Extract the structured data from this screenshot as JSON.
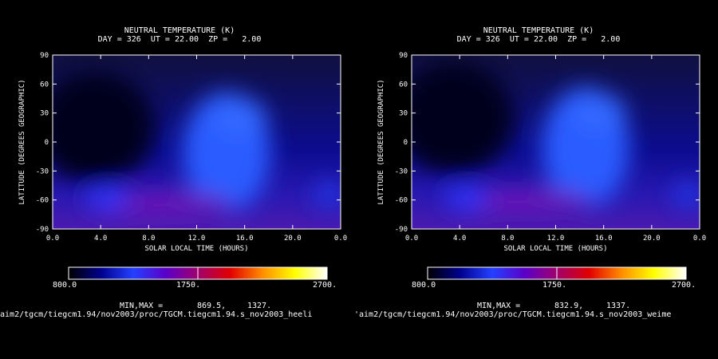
{
  "colors": {
    "background": "#000000",
    "colorscale": [
      "#000000",
      "#00008c",
      "#2440ff",
      "#5a00c8",
      "#a0006e",
      "#e10000",
      "#ff8c00",
      "#ffff00",
      "#ffffff"
    ]
  },
  "panels": [
    {
      "title_line1": "NEUTRAL TEMPERATURE (K)",
      "title_line2": "DAY = 326  UT = 22.00  ZP =   2.00",
      "ylabel": "LATITUDE (DEGREES GEOGRAPHIC)",
      "xlabel": "SOLAR LOCAL TIME (HOURS)",
      "xtick_labels": [
        "0.0",
        "4.0",
        "8.0",
        "12.0",
        "16.0",
        "20.0",
        "0.0"
      ],
      "ytick_labels": [
        "90",
        "60",
        "30",
        "0",
        "-30",
        "-60",
        "-90"
      ],
      "colorbar_min_label": "800.0",
      "colorbar_mid_label": "1750.",
      "colorbar_max_label": "2700.",
      "minmax_label": "MIN,MAX =",
      "min_value": "869.5,",
      "max_value": "1327.",
      "source_path": "/aim2/tgcm/tiegcm1.94/nov2003/proc/TGCM.tiegcm1.94.s_nov2003_heeli"
    },
    {
      "title_line1": "NEUTRAL TEMPERATURE (K)",
      "title_line2": "DAY = 326  UT = 22.00  ZP =   2.00",
      "ylabel": "LATITUDE (DEGREES GEOGRAPHIC)",
      "xlabel": "SOLAR LOCAL TIME (HOURS)",
      "xtick_labels": [
        "0.0",
        "4.0",
        "8.0",
        "12.0",
        "16.0",
        "20.0",
        "0.0"
      ],
      "ytick_labels": [
        "90",
        "60",
        "30",
        "0",
        "-30",
        "-60",
        "-90"
      ],
      "colorbar_min_label": "800.0",
      "colorbar_mid_label": "1750.",
      "colorbar_max_label": "2700.",
      "minmax_label": "MIN,MAX =",
      "min_value": "832.9,",
      "max_value": "1337.",
      "source_path": "'aim2/tgcm/tiegcm1.94/nov2003/proc/TGCM.tiegcm1.94.s_nov2003_weime"
    }
  ],
  "chart_data": [
    {
      "type": "heatmap",
      "title": "NEUTRAL TEMPERATURE (K)",
      "subtitle": "DAY = 326  UT = 22.00  ZP =   2.00",
      "xlabel": "SOLAR LOCAL TIME (HOURS)",
      "ylabel": "LATITUDE (DEGREES GEOGRAPHIC)",
      "xlim": [
        0,
        24
      ],
      "ylim": [
        -90,
        90
      ],
      "x_ticks": [
        0,
        4,
        8,
        12,
        16,
        20,
        24
      ],
      "y_ticks": [
        90,
        60,
        30,
        0,
        -30,
        -60,
        -90
      ],
      "colorbar_range": [
        800,
        2700
      ],
      "min": 869.5,
      "max": 1327,
      "field_features": [
        {
          "feature": "cold minimum",
          "slt": 3.5,
          "lat": 15,
          "value": 880
        },
        {
          "feature": "warm dayside maximum",
          "slt": 14.5,
          "lat": -10,
          "value": 1180
        },
        {
          "feature": "southern auroral heating",
          "slt": 9,
          "lat": -65,
          "value": 1327
        }
      ]
    },
    {
      "type": "heatmap",
      "title": "NEUTRAL TEMPERATURE (K)",
      "subtitle": "DAY = 326  UT = 22.00  ZP =   2.00",
      "xlabel": "SOLAR LOCAL TIME (HOURS)",
      "ylabel": "LATITUDE (DEGREES GEOGRAPHIC)",
      "xlim": [
        0,
        24
      ],
      "ylim": [
        -90,
        90
      ],
      "x_ticks": [
        0,
        4,
        8,
        12,
        16,
        20,
        24
      ],
      "y_ticks": [
        90,
        60,
        30,
        0,
        -30,
        -60,
        -90
      ],
      "colorbar_range": [
        800,
        2700
      ],
      "min": 832.9,
      "max": 1337,
      "field_features": [
        {
          "feature": "cold minimum",
          "slt": 3.5,
          "lat": 25,
          "value": 850
        },
        {
          "feature": "warm dayside maximum",
          "slt": 14.5,
          "lat": -5,
          "value": 1190
        },
        {
          "feature": "southern auroral heating",
          "slt": 9,
          "lat": -62,
          "value": 1337
        }
      ]
    }
  ]
}
